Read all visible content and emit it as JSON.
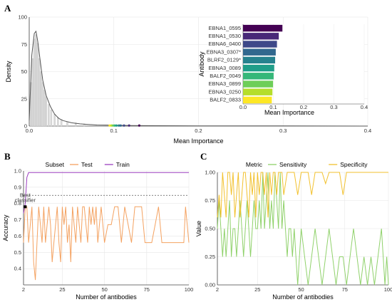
{
  "panel_letters": {
    "a": "A",
    "b": "B",
    "c": "C"
  },
  "chart_data": [
    {
      "id": "A",
      "type": "area",
      "xlabel": "Mean Importance",
      "ylabel": "Density",
      "xlim": [
        0,
        0.4
      ],
      "ylim": [
        0,
        100
      ],
      "xticks": [
        "0.0",
        "0.1",
        "0.2",
        "0.3",
        "0.4"
      ],
      "yticks": [
        "0",
        "25",
        "50",
        "75",
        "100"
      ],
      "grid": true,
      "density_x": [
        0.0,
        0.003,
        0.006,
        0.008,
        0.01,
        0.013,
        0.016,
        0.02,
        0.025,
        0.03,
        0.035,
        0.04,
        0.05,
        0.06,
        0.07,
        0.08,
        0.1,
        0.12,
        0.15,
        0.2,
        0.3,
        0.4
      ],
      "density_y": [
        5,
        65,
        85,
        87,
        78,
        60,
        42,
        28,
        18,
        11,
        7,
        5,
        3,
        2,
        1.5,
        1,
        0.8,
        0.5,
        0.3,
        0.2,
        0.1,
        0
      ],
      "highlight_points": [
        {
          "x": 0.095,
          "color": "#fde725"
        },
        {
          "x": 0.097,
          "color": "#b5de2b"
        },
        {
          "x": 0.099,
          "color": "#6ece58"
        },
        {
          "x": 0.101,
          "color": "#35b779"
        },
        {
          "x": 0.103,
          "color": "#1f9e89"
        },
        {
          "x": 0.106,
          "color": "#26828e"
        },
        {
          "x": 0.108,
          "color": "#31688e"
        },
        {
          "x": 0.112,
          "color": "#3e4989"
        },
        {
          "x": 0.118,
          "color": "#482878"
        },
        {
          "x": 0.13,
          "color": "#440154"
        }
      ]
    },
    {
      "id": "A-inset",
      "type": "bar",
      "orientation": "horizontal",
      "ylabel": "Antibody",
      "xlabel": "Mean Importance",
      "xlim": [
        0,
        0.4
      ],
      "xticks": [
        "0.0",
        "0.1",
        "0.2",
        "0.3",
        "0.4"
      ],
      "categories": [
        "EBNA1_0595",
        "EBNA1_0530",
        "EBNA6_0400",
        "EBNA3_0307*",
        "BLRF2_0129*",
        "EBNA3_0089",
        "BALF2_0049",
        "EBNA3_0899",
        "EBNA3_0250",
        "BALF2_0833"
      ],
      "values": [
        0.13,
        0.118,
        0.112,
        0.108,
        0.106,
        0.103,
        0.101,
        0.099,
        0.097,
        0.095
      ],
      "colors": [
        "#440154",
        "#482878",
        "#3e4989",
        "#31688e",
        "#26828e",
        "#1f9e89",
        "#35b779",
        "#6ece58",
        "#b5de2b",
        "#fde725"
      ]
    },
    {
      "id": "B",
      "type": "line",
      "legend_title": "Subset",
      "legend_position": "top",
      "xlabel": "Number of antibodies",
      "ylabel": "Accuracy",
      "xlim": [
        2,
        100
      ],
      "ylim": [
        0.3,
        1.0
      ],
      "xticks": [
        "2",
        "25",
        "50",
        "75",
        "100"
      ],
      "yticks": [
        "0.4",
        "0.5",
        "0.6",
        "0.7",
        "0.8",
        "0.9",
        "1.0"
      ],
      "hline": 0.85,
      "annotation": {
        "label_line1": "Best",
        "label_line2": "classifier",
        "x": 3,
        "y": 0.78
      },
      "series": [
        {
          "name": "Test",
          "color": "#f4a261",
          "x": [
            2,
            3,
            4,
            5,
            6,
            7,
            8,
            9,
            10,
            11,
            12,
            13,
            14,
            15,
            16,
            17,
            18,
            19,
            20,
            21,
            22,
            23,
            24,
            25,
            26,
            27,
            28,
            29,
            30,
            31,
            32,
            33,
            34,
            35,
            36,
            37,
            38,
            39,
            40,
            41,
            42,
            43,
            44,
            45,
            46,
            47,
            48,
            49,
            50,
            52,
            54,
            56,
            58,
            60,
            62,
            64,
            66,
            68,
            70,
            72,
            74,
            76,
            78,
            80,
            82,
            84,
            86,
            88,
            90,
            92,
            94,
            96,
            97,
            98,
            100
          ],
          "y": [
            0.56,
            0.78,
            0.78,
            0.56,
            0.67,
            0.78,
            0.44,
            0.33,
            0.56,
            0.78,
            0.67,
            0.56,
            0.78,
            0.56,
            0.67,
            0.78,
            0.67,
            0.44,
            0.56,
            0.67,
            0.78,
            0.56,
            0.44,
            0.78,
            0.67,
            0.78,
            0.56,
            0.67,
            0.44,
            0.78,
            0.67,
            0.56,
            0.78,
            0.67,
            0.56,
            0.78,
            0.78,
            0.67,
            0.56,
            0.78,
            0.67,
            0.78,
            0.67,
            0.78,
            0.56,
            0.67,
            0.78,
            0.67,
            0.56,
            0.67,
            0.67,
            0.78,
            0.78,
            0.56,
            0.78,
            0.67,
            0.56,
            0.78,
            0.78,
            0.78,
            0.56,
            0.56,
            0.56,
            0.67,
            0.78,
            0.56,
            0.56,
            0.56,
            0.56,
            0.56,
            0.56,
            0.56,
            0.56,
            0.78,
            0.56
          ]
        },
        {
          "name": "Train",
          "color": "#9b3fbf",
          "x": [
            2,
            3,
            4,
            5,
            6,
            8,
            10,
            20,
            50,
            100
          ],
          "y": [
            0.74,
            0.8,
            0.96,
            0.99,
            0.99,
            0.99,
            0.99,
            0.99,
            0.99,
            0.99
          ]
        }
      ]
    },
    {
      "id": "C",
      "type": "line",
      "legend_title": "Metric",
      "legend_position": "top",
      "xlabel": "Number of antibodies",
      "ylabel": "Value",
      "xlim": [
        2,
        100
      ],
      "ylim": [
        0,
        1
      ],
      "xticks": [
        "2",
        "25",
        "50",
        "75",
        "100"
      ],
      "yticks": [
        "0.00",
        "0.25",
        "0.50",
        "0.75",
        "1.00"
      ],
      "series": [
        {
          "name": "Sensitivity",
          "color": "#8fd16a",
          "x": [
            2,
            3,
            4,
            5,
            6,
            7,
            8,
            9,
            10,
            11,
            12,
            13,
            14,
            15,
            16,
            17,
            18,
            19,
            20,
            21,
            22,
            23,
            24,
            25,
            26,
            27,
            28,
            29,
            30,
            31,
            32,
            33,
            34,
            35,
            36,
            37,
            38,
            39,
            40,
            41,
            42,
            43,
            44,
            45,
            46,
            47,
            48,
            49,
            50,
            52,
            54,
            56,
            58,
            60,
            62,
            64,
            66,
            68,
            70,
            72,
            74,
            76,
            78,
            80,
            82,
            84,
            86,
            88,
            90,
            92,
            94,
            96,
            98,
            99,
            100
          ],
          "y": [
            0.5,
            0.75,
            0.5,
            0.25,
            0.5,
            0.25,
            0.5,
            0.75,
            0.25,
            0.5,
            0.5,
            0.25,
            0.5,
            0.75,
            0.5,
            0.25,
            0.5,
            0.75,
            0.5,
            0.25,
            0.5,
            0.75,
            0.5,
            0.5,
            0.75,
            0.5,
            1.0,
            0.5,
            0.75,
            1.0,
            0.5,
            0.75,
            0.5,
            1.0,
            0.75,
            0.5,
            1.0,
            0.5,
            0.75,
            0.5,
            0.25,
            0.5,
            0.5,
            0.25,
            0.5,
            0.25,
            0.0,
            0.25,
            0.5,
            0.25,
            0.0,
            0.25,
            0.5,
            0.25,
            0.0,
            0.25,
            0.5,
            0.25,
            0.0,
            0.25,
            0.25,
            0.0,
            0.25,
            0.5,
            0.25,
            0.0,
            0.25,
            0.0,
            0.25,
            0.0,
            0.25,
            0.5,
            0.0,
            0.25,
            0.0
          ]
        },
        {
          "name": "Specificity",
          "color": "#f2c12e",
          "x": [
            2,
            3,
            4,
            5,
            6,
            7,
            8,
            9,
            10,
            11,
            12,
            13,
            14,
            15,
            16,
            17,
            18,
            19,
            20,
            21,
            22,
            23,
            24,
            25,
            26,
            27,
            28,
            29,
            30,
            31,
            32,
            33,
            34,
            35,
            36,
            37,
            38,
            39,
            40,
            42,
            44,
            46,
            48,
            50,
            52,
            54,
            56,
            58,
            60,
            62,
            64,
            66,
            68,
            70,
            72,
            74,
            76,
            78,
            80,
            82,
            84,
            86,
            88,
            90,
            92,
            94,
            96,
            98,
            100
          ],
          "y": [
            0.6,
            0.8,
            0.6,
            1.0,
            0.8,
            0.6,
            1.0,
            1.0,
            0.8,
            1.0,
            0.6,
            0.8,
            1.0,
            0.6,
            0.8,
            1.0,
            1.0,
            0.8,
            0.6,
            1.0,
            0.8,
            1.0,
            0.6,
            1.0,
            0.8,
            1.0,
            1.0,
            0.8,
            1.0,
            0.6,
            1.0,
            0.8,
            1.0,
            1.0,
            0.8,
            1.0,
            1.0,
            1.0,
            0.8,
            1.0,
            1.0,
            1.0,
            0.8,
            1.0,
            1.0,
            1.0,
            0.8,
            1.0,
            1.0,
            1.0,
            0.9,
            1.0,
            1.0,
            1.0,
            1.0,
            0.8,
            1.0,
            1.0,
            1.0,
            1.0,
            1.0,
            1.0,
            1.0,
            1.0,
            1.0,
            1.0,
            1.0,
            1.0,
            1.0
          ]
        }
      ]
    }
  ]
}
